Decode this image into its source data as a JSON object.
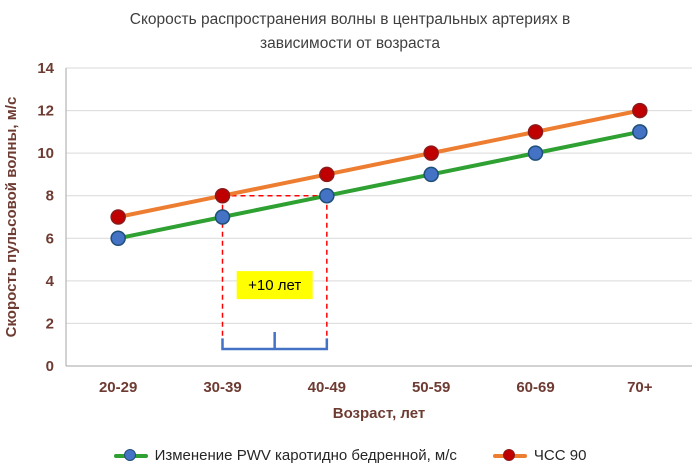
{
  "title_lines": [
    "Скорость распространения волны в центральных артериях  в",
    "зависимости от возраста"
  ],
  "chart_data": {
    "type": "line",
    "title": "Скорость распространения волны в центральных артериях в зависимости от возраста",
    "categories": [
      "20-29",
      "30-39",
      "40-49",
      "50-59",
      "60-69",
      "70+"
    ],
    "series": [
      {
        "name": "Изменение PWV каротидно бедренной, м/с",
        "values": [
          6,
          7,
          8,
          9,
          10,
          11
        ],
        "line_color": "#2FA032",
        "marker_fill": "#4472C4",
        "marker_stroke": "#1F4E79"
      },
      {
        "name": "ЧСС 90",
        "values": [
          7,
          8,
          9,
          10,
          11,
          12
        ],
        "line_color": "#ED7D31",
        "marker_fill": "#C00000",
        "marker_stroke": "#8B1A1A"
      }
    ],
    "xlabel": "Возраст, лет",
    "ylabel": "Скорость пульсовой волны, м/с",
    "ylim": [
      0,
      14
    ],
    "ytick_step": 2,
    "grid": true,
    "legend_position": "bottom",
    "colors": {
      "grid": "#D9D9D9",
      "axis_line": "#A6A6A6",
      "axis_text": "#6E3B32",
      "title_text": "#3F3F3F",
      "legend_text": "#262626"
    },
    "annotation": {
      "label": "+10 лет",
      "label_bg": "#FFFF00",
      "label_text_color": "#000000",
      "between_categories": [
        "30-39",
        "40-49"
      ],
      "y_level": 8,
      "dash_color": "#FF0000",
      "brace_color": "#4472C4"
    }
  }
}
